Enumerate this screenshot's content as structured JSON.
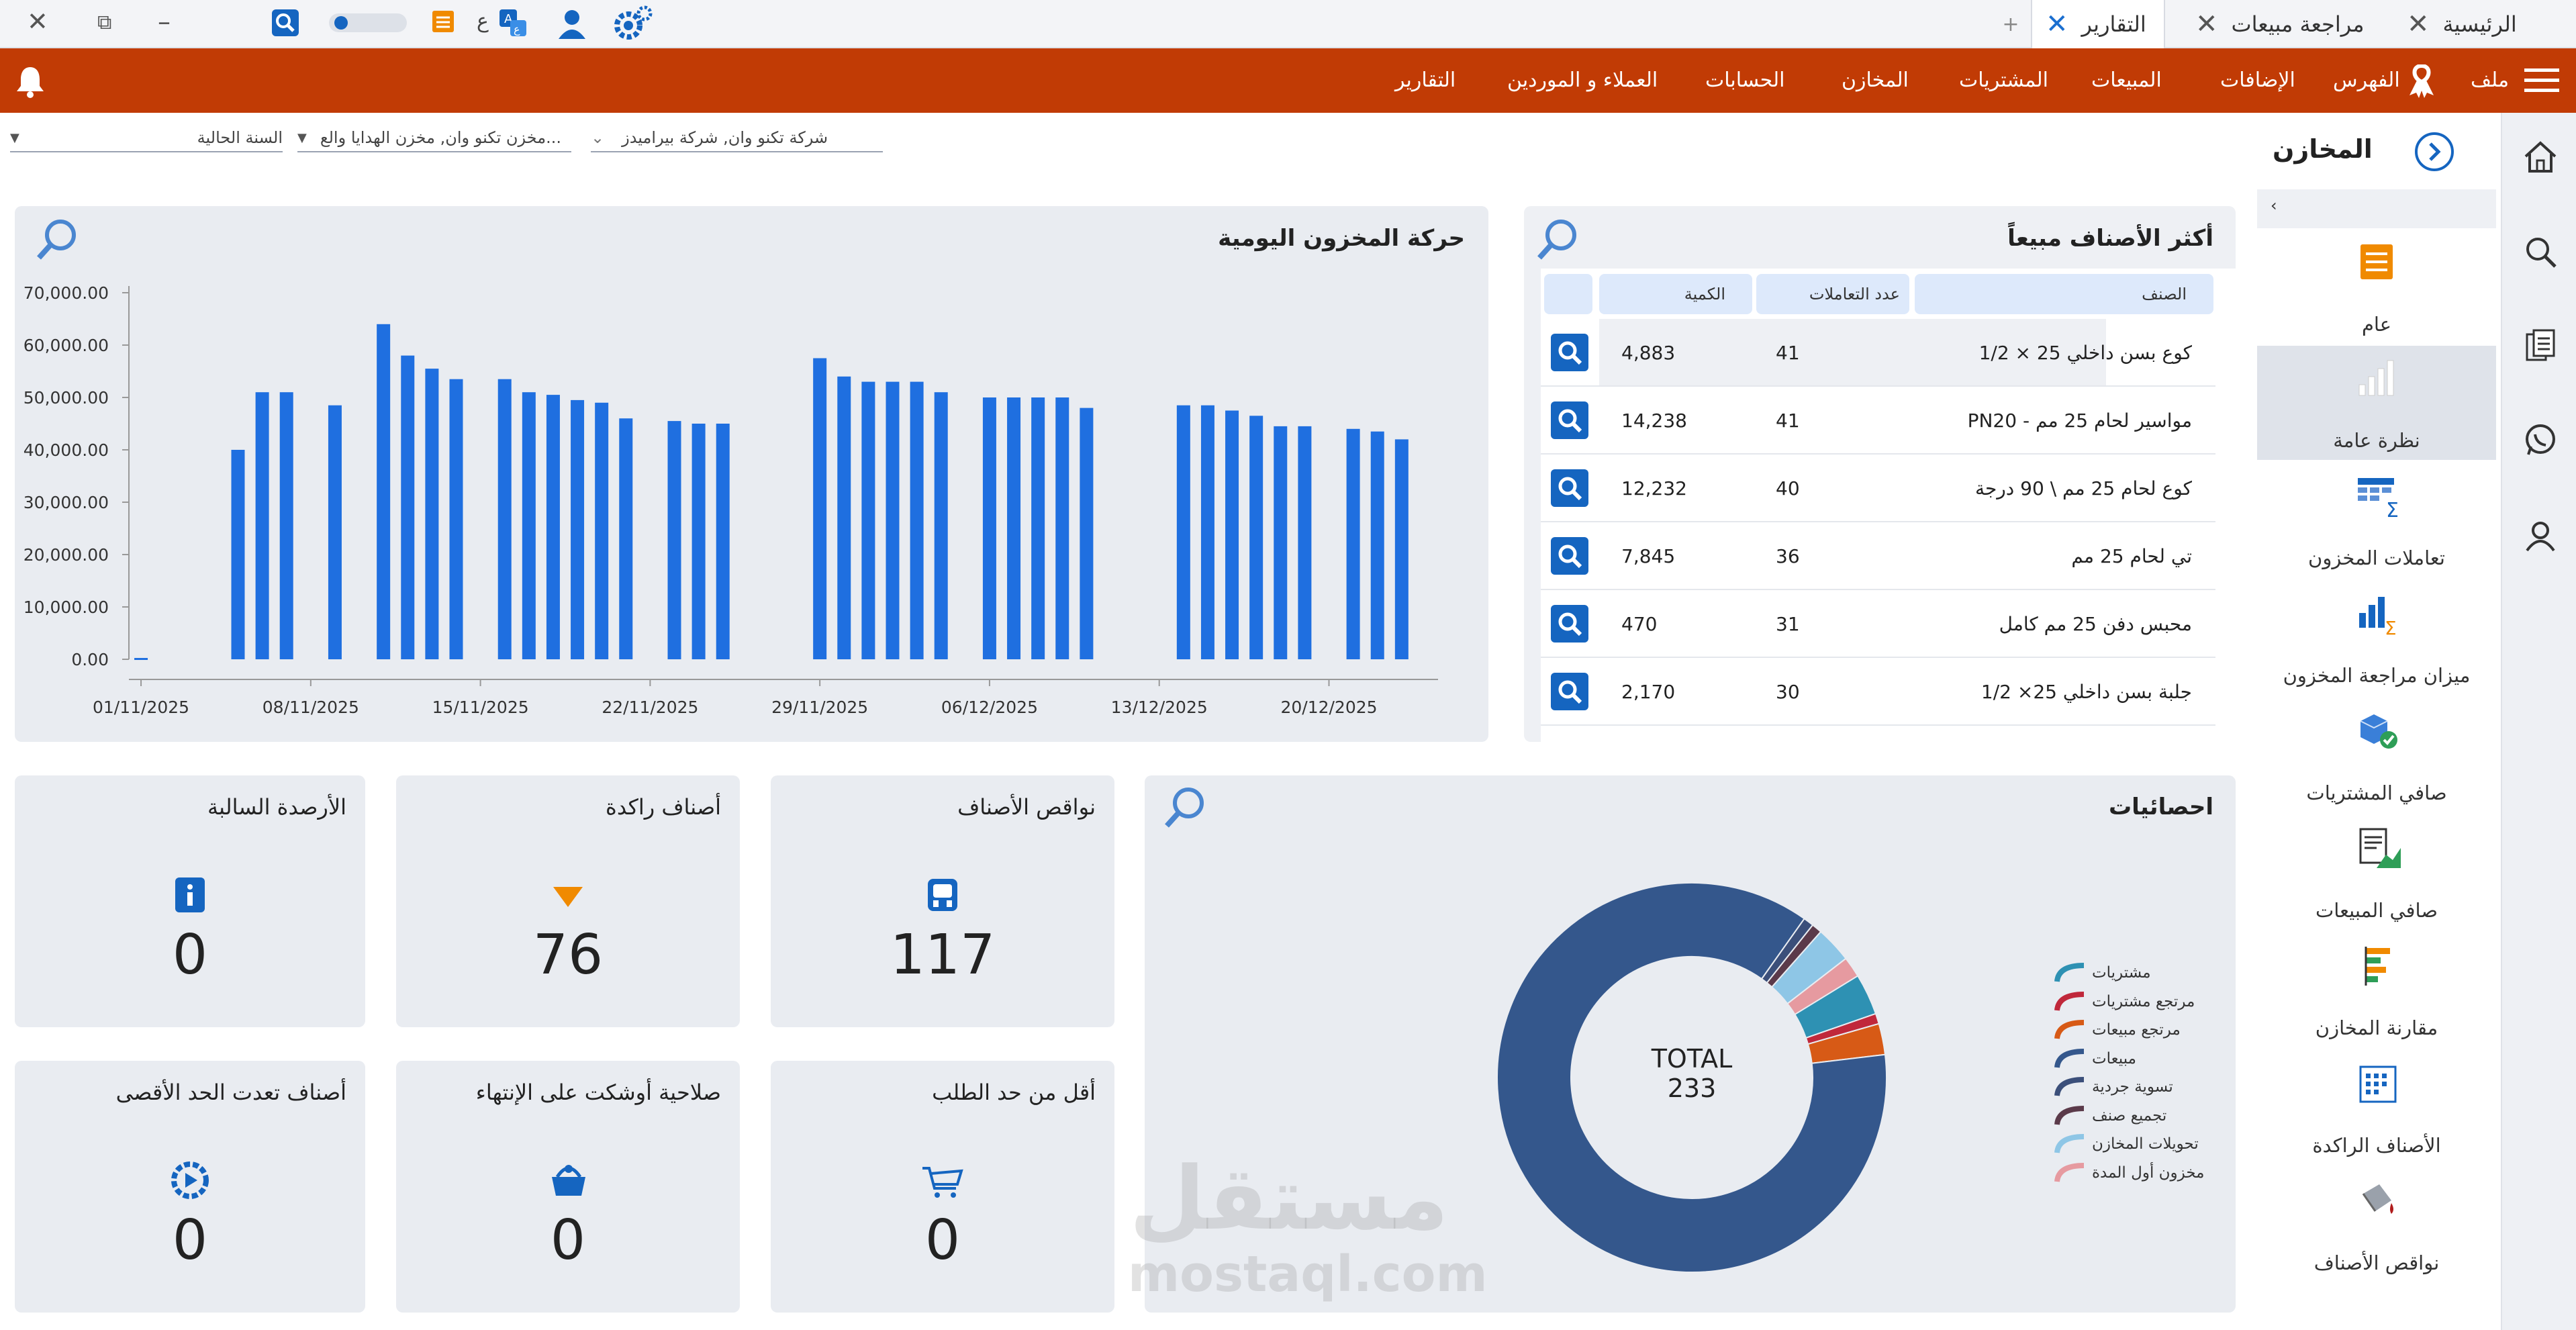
{
  "titlebar": {
    "tabs": [
      {
        "label": "الرئيسية",
        "active": false
      },
      {
        "label": "مراجعة مبيعات",
        "active": false
      },
      {
        "label": "التقارير",
        "active": true
      }
    ],
    "new_tab": "+",
    "lang_glyph": "ع"
  },
  "menu": {
    "file": "ملف",
    "items": [
      "الفهرس",
      "الإضافات",
      "المبيعات",
      "المشتريات",
      "المخازن",
      "الحسابات",
      "العملاء و الموردين",
      "التقارير"
    ]
  },
  "filters": {
    "company": "شركة تكنو وان, شركة بيراميدز",
    "stores": "مخزن تكنو وان, مخزن الهدايا والع...",
    "period": "السنة الحالية"
  },
  "side_panel": {
    "title": "المخازن",
    "items": [
      {
        "label": "عام",
        "icon": "list-icon"
      },
      {
        "label": "نظرة عامة",
        "icon": "bar-chart-icon",
        "active": true
      },
      {
        "label": "تعاملات المخزون",
        "icon": "table-sum-icon"
      },
      {
        "label": "ميزان مراجعة المخزون",
        "icon": "chart-sum-icon"
      },
      {
        "label": "صافي المشتريات",
        "icon": "box-check-icon"
      },
      {
        "label": "صافي المبيعات",
        "icon": "document-chart-icon"
      },
      {
        "label": "مقارنة المخازن",
        "icon": "compare-bars-icon"
      },
      {
        "label": "الأصناف الراكدة",
        "icon": "calendar-grid-icon"
      },
      {
        "label": "نواقص الأصناف",
        "icon": "paint-bucket-icon"
      }
    ]
  },
  "top_items": {
    "title": "أكثر الأصناف مبيعاً",
    "columns": [
      "الصنف",
      "عدد التعاملات",
      "الكمية"
    ],
    "rows": [
      {
        "item": "كوع بسن داخلي 25 × 1/2",
        "count": "41",
        "qty": "4,883"
      },
      {
        "item": "مواسير لحام 25 مم - PN20",
        "count": "41",
        "qty": "14,238"
      },
      {
        "item": "كوع لحام 25 مم \\ 90 درجة",
        "count": "40",
        "qty": "12,232"
      },
      {
        "item": "تي لحام 25 مم",
        "count": "36",
        "qty": "7,845"
      },
      {
        "item": "محبس دفن 25 مم كامل",
        "count": "31",
        "qty": "470"
      },
      {
        "item": "جلبة بسن داخلي 25× 1/2",
        "count": "30",
        "qty": "2,170"
      }
    ]
  },
  "daily_chart_title": "حركة المخزون اليومية",
  "chart_data": [
    {
      "type": "bar",
      "x": [
        "01/11/2025",
        "02/11/2025",
        "03/11/2025",
        "04/11/2025",
        "05/11/2025",
        "06/11/2025",
        "07/11/2025",
        "08/11/2025",
        "09/11/2025",
        "10/11/2025",
        "11/11/2025",
        "12/11/2025",
        "13/11/2025",
        "14/11/2025",
        "15/11/2025",
        "16/11/2025",
        "17/11/2025",
        "18/11/2025",
        "19/11/2025",
        "20/11/2025",
        "21/11/2025",
        "22/11/2025",
        "23/11/2025",
        "24/11/2025",
        "25/11/2025",
        "26/11/2025",
        "27/11/2025",
        "28/11/2025",
        "29/11/2025",
        "30/11/2025",
        "01/12/2025",
        "02/12/2025",
        "03/12/2025",
        "04/12/2025",
        "05/12/2025",
        "06/12/2025",
        "07/12/2025",
        "08/12/2025",
        "09/12/2025",
        "10/12/2025",
        "11/12/2025",
        "12/12/2025",
        "13/12/2025",
        "14/12/2025",
        "15/12/2025",
        "16/12/2025",
        "17/12/2025",
        "18/12/2025",
        "19/12/2025",
        "20/12/2025",
        "21/12/2025",
        "22/12/2025",
        "23/12/2025",
        "24/12/2025"
      ],
      "values": [
        0,
        0,
        0,
        0,
        40000,
        51000,
        51000,
        0,
        48500,
        0,
        64000,
        58000,
        55500,
        53500,
        0,
        53500,
        51000,
        50500,
        49500,
        49000,
        46000,
        0,
        45500,
        45000,
        45000,
        0,
        0,
        0,
        57500,
        54000,
        53000,
        53000,
        53000,
        51000,
        0,
        50000,
        50000,
        50000,
        50000,
        48000,
        0,
        0,
        0,
        48500,
        48500,
        47500,
        46500,
        44500,
        44500,
        0,
        44000,
        43500,
        42000,
        0
      ],
      "tick_labels": [
        "01/11/2025",
        "08/11/2025",
        "15/11/2025",
        "22/11/2025",
        "29/11/2025",
        "06/12/2025",
        "13/12/2025",
        "20/12/2025"
      ],
      "y_ticks": [
        "0.00",
        "10,000.00",
        "20,000.00",
        "30,000.00",
        "40,000.00",
        "50,000.00",
        "60,000.00",
        "70,000.00"
      ],
      "ylim": [
        0,
        70000
      ],
      "color": "#1f6fe0"
    },
    {
      "type": "pie",
      "title": "احصائيات",
      "center_label": "TOTAL",
      "center_value": "233",
      "categories": [
        "مشتريات",
        "مرتجع مشتريات",
        "مرتجع مبيعات",
        "مبيعات",
        "تسوية جردية",
        "تجميع صنف",
        "تحويلات المخازن",
        "مخزون أول المدة"
      ],
      "values": [
        8,
        2,
        6,
        202,
        2,
        2,
        7,
        4
      ],
      "colors": [
        "#2e91b3",
        "#c0283b",
        "#d75a16",
        "#34578c",
        "#3b4f7a",
        "#5b3a4a",
        "#8ec6e6",
        "#e69aa0"
      ]
    }
  ],
  "stats": {
    "negative_balances": {
      "title": "الأرصدة السالبة",
      "value": "0"
    },
    "stagnant_items": {
      "title": "أصناف راكدة",
      "value": "76"
    },
    "item_shortages": {
      "title": "نواقص الأصناف",
      "value": "117"
    },
    "over_max": {
      "title": "أصناف تعدت الحد الأقصى",
      "value": "0"
    },
    "near_expiry": {
      "title": "صلاحية أوشكت على الإنتهاء",
      "value": "0"
    },
    "below_reorder": {
      "title": "أقل من حد الطلب",
      "value": "0"
    }
  },
  "watermark": {
    "arabic": "مستقل",
    "latin": "mostaql.com"
  },
  "colors": {
    "accent": "#c13b05",
    "primary": "#1565c0",
    "card": "#e9ecf1"
  }
}
